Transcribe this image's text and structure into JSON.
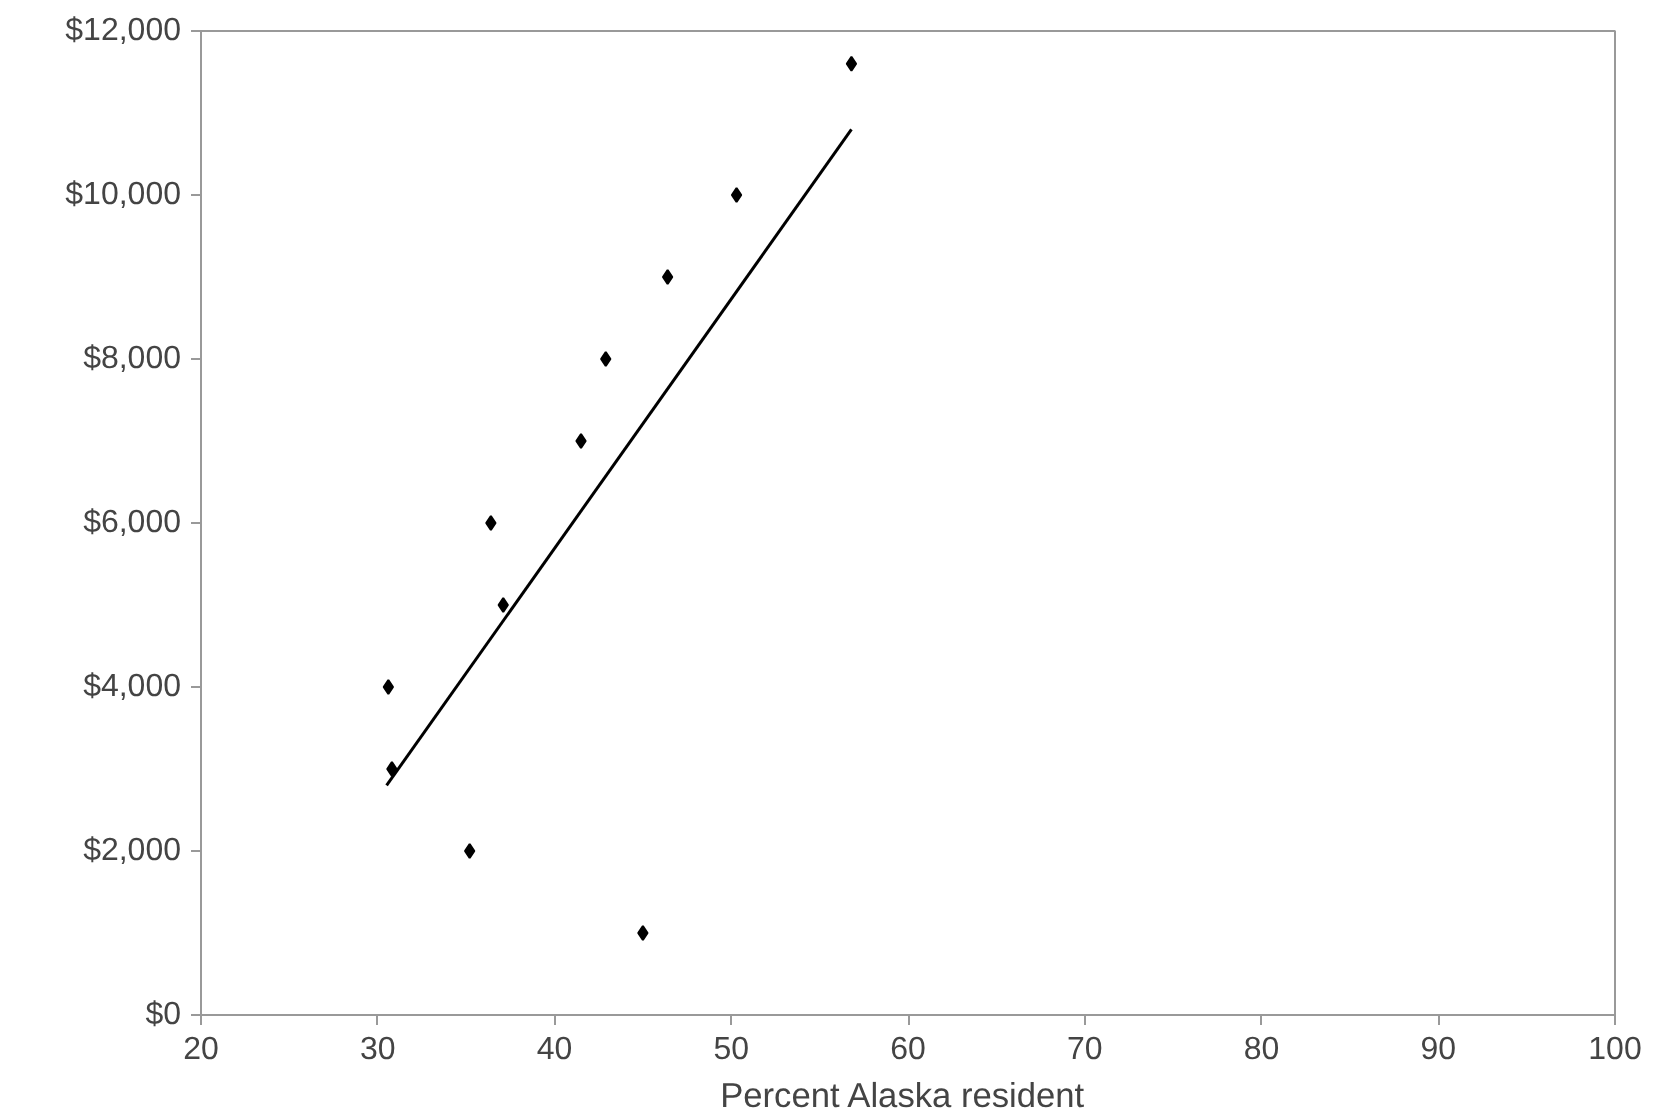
{
  "chart_data": {
    "type": "scatter",
    "xlabel": "Percent  Alaska resident",
    "xlim": [
      20,
      100
    ],
    "xticks": [
      20,
      30,
      40,
      50,
      60,
      70,
      80,
      90,
      100
    ],
    "ylim": [
      0,
      12000
    ],
    "yticks": [
      {
        "value": 0,
        "label": "$0"
      },
      {
        "value": 2000,
        "label": "$2,000"
      },
      {
        "value": 4000,
        "label": "$4,000"
      },
      {
        "value": 6000,
        "label": "$6,000"
      },
      {
        "value": 8000,
        "label": "$8,000"
      },
      {
        "value": 10000,
        "label": "$10,000"
      },
      {
        "value": 12000,
        "label": "$12,000"
      }
    ],
    "grid": false,
    "series": [
      {
        "color": "#000000",
        "marker": "diamond",
        "x": [
          30.6,
          30.8,
          35.2,
          36.4,
          37.1,
          41.5,
          42.9,
          45.0,
          46.4,
          50.3,
          56.8
        ],
        "values": [
          4000,
          3000,
          2000,
          6000,
          5000,
          7000,
          8000,
          1000,
          9000,
          10000,
          11600
        ]
      },
      {
        "type": "line",
        "color": "#000000",
        "x": [
          30.5,
          56.8
        ],
        "values": [
          2800,
          10800
        ]
      }
    ]
  }
}
